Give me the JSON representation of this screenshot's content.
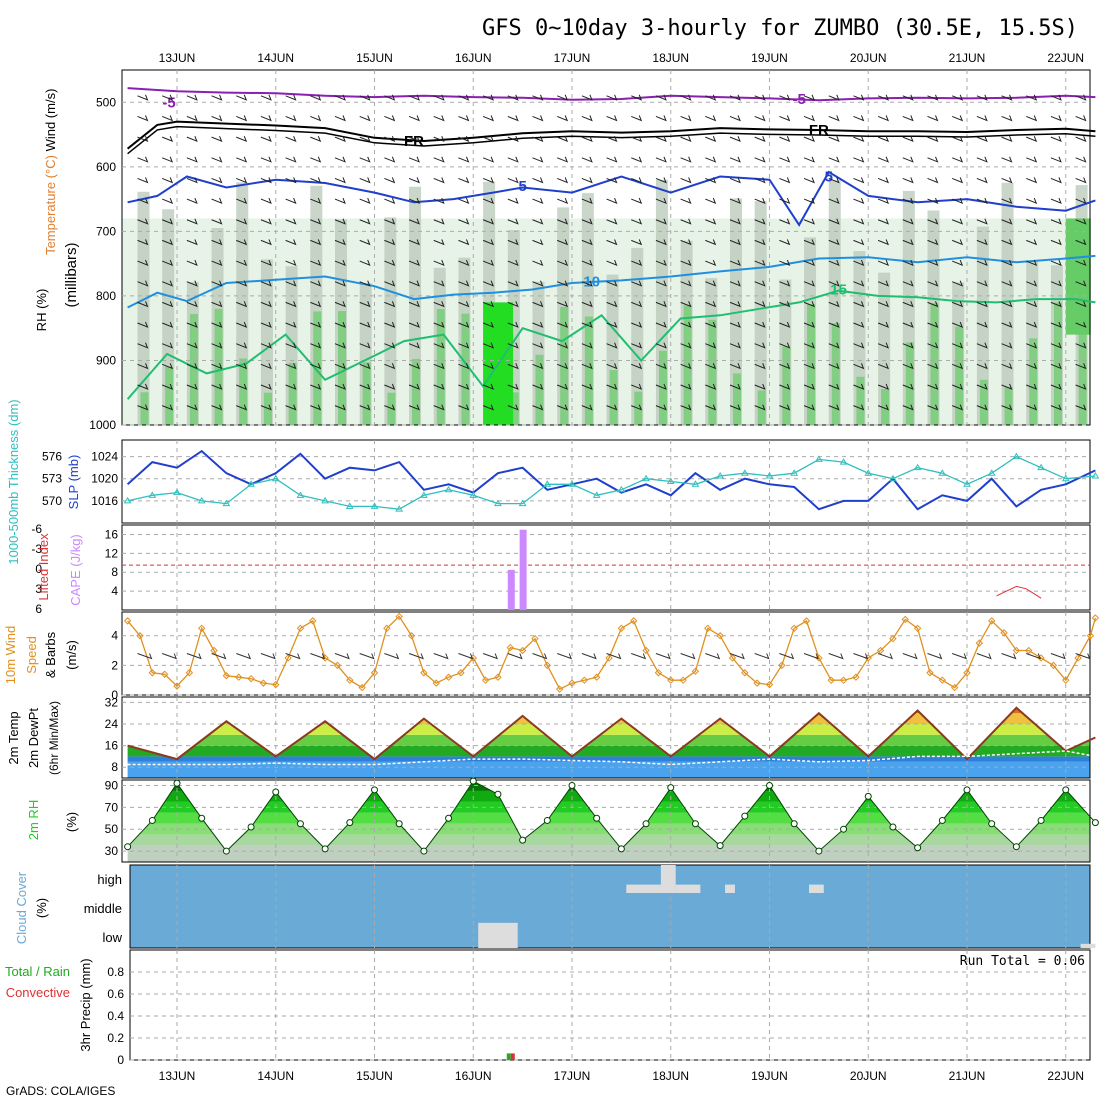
{
  "title": "GFS 0~10day 3-hourly for ZUMBO (30.5E, 15.5S)",
  "footer": "GrADS: COLA/IGES",
  "run_total_label": "Run Total = 0.06",
  "colors": {
    "temp_minus5": "#8a1fb0",
    "freezing": "#000000",
    "temp_5": "#1f3fcc",
    "temp_10": "#1f90e0",
    "temp_15": "#1fbf6f",
    "temp_20": "#e0901f",
    "rh_light": "#e8f3e8",
    "rh_mid": "#b8c8b8",
    "rh_green": "#66cc66",
    "rh_bright": "#22dd22",
    "slp": "#1f3fcc",
    "thickness": "#2fbfbf",
    "cape": "#cc88ff",
    "lifted_index": "#dd3333",
    "wind10m": "#e09020",
    "dewpoint_fill": "#2f8fe0",
    "rh2m": "#22cc22",
    "cloud": "#6aaad6",
    "precip_total": "#22aa22",
    "precip_conv": "#dd3333"
  },
  "chart_data": [
    {
      "type": "line",
      "panel": "upper-air",
      "labels": {
        "wind": "Wind (m/s)",
        "temperature": "Temperature (°C)",
        "rh": "RH (%)",
        "ylabel": "(millibars)"
      },
      "x_ticks_top": [
        "13JUN",
        "14JUN",
        "15JUN",
        "16JUN",
        "17JUN",
        "18JUN",
        "19JUN",
        "20JUN",
        "21JUN",
        "22JUN"
      ],
      "y_ticks": [
        500,
        600,
        700,
        800,
        900,
        1000
      ],
      "ylim": [
        450,
        1000
      ],
      "y_reversed": true,
      "contour_labels": [
        {
          "label": "-5",
          "day": 12.92,
          "p": 500
        },
        {
          "label": "-5",
          "day": 19.3,
          "p": 495
        },
        {
          "label": "FR",
          "day": 15.4,
          "p": 560
        },
        {
          "label": "FR",
          "day": 19.5,
          "p": 543
        },
        {
          "label": "5",
          "day": 16.5,
          "p": 630
        },
        {
          "label": "5",
          "day": 19.6,
          "p": 615
        },
        {
          "label": "10",
          "day": 17.2,
          "p": 778
        },
        {
          "label": "15",
          "day": 19.7,
          "p": 790
        }
      ],
      "series": [
        {
          "name": "-5",
          "color_key": "temp_minus5",
          "day": [
            12.5,
            13,
            13.5,
            14,
            14.5,
            15,
            15.5,
            16,
            16.5,
            17,
            17.5,
            18,
            18.5,
            19,
            19.5,
            20,
            20.5,
            21,
            21.5,
            22,
            22.3
          ],
          "p": [
            478,
            483,
            485,
            486,
            490,
            492,
            490,
            492,
            493,
            496,
            495,
            490,
            492,
            494,
            497,
            494,
            493,
            494,
            493,
            490,
            492
          ]
        },
        {
          "name": "FR",
          "color_key": "freezing",
          "day": [
            12.5,
            12.8,
            13,
            13.5,
            14,
            14.5,
            15,
            15.5,
            16,
            16.5,
            17,
            17.5,
            18,
            18.5,
            19,
            19.5,
            20,
            20.5,
            21,
            21.5,
            22,
            22.3
          ],
          "p": [
            572,
            535,
            530,
            533,
            536,
            540,
            555,
            560,
            555,
            548,
            545,
            547,
            545,
            540,
            542,
            543,
            545,
            545,
            546,
            543,
            541,
            545
          ]
        },
        {
          "name": "5",
          "color_key": "temp_5",
          "day": [
            12.5,
            12.8,
            13.1,
            13.5,
            14,
            14.5,
            15,
            15.4,
            15.8,
            16.2,
            16.5,
            17,
            17.5,
            18,
            18.5,
            19,
            19.3,
            19.6,
            20,
            20.5,
            21,
            21.5,
            22,
            22.3
          ],
          "p": [
            655,
            645,
            615,
            632,
            620,
            625,
            640,
            655,
            650,
            640,
            632,
            640,
            615,
            640,
            615,
            620,
            690,
            608,
            645,
            655,
            650,
            662,
            668,
            652
          ]
        },
        {
          "name": "10",
          "color_key": "temp_10",
          "day": [
            12.5,
            12.8,
            13.1,
            13.5,
            14,
            14.5,
            15,
            15.4,
            15.8,
            16.2,
            16.6,
            17,
            17.5,
            18,
            18.5,
            19,
            19.5,
            20,
            20.5,
            21,
            21.5,
            22,
            22.3
          ],
          "p": [
            818,
            795,
            808,
            780,
            775,
            770,
            785,
            805,
            798,
            795,
            790,
            780,
            776,
            770,
            762,
            755,
            742,
            740,
            748,
            740,
            748,
            742,
            738
          ]
        },
        {
          "name": "15",
          "color_key": "temp_15",
          "day": [
            12.5,
            12.9,
            13.3,
            13.7,
            14.1,
            14.5,
            14.9,
            15.3,
            15.7,
            16.1,
            16.5,
            16.9,
            17.3,
            17.7,
            18.1,
            18.5,
            18.9,
            19.3,
            19.7,
            20.1,
            20.5,
            20.9,
            21.3,
            21.7,
            22.1,
            22.3
          ],
          "p": [
            960,
            890,
            920,
            905,
            860,
            930,
            900,
            870,
            860,
            940,
            850,
            870,
            830,
            900,
            835,
            830,
            820,
            810,
            792,
            800,
            802,
            808,
            810,
            805,
            805,
            810
          ]
        }
      ]
    },
    {
      "type": "line",
      "panel": "slp-thickness",
      "labels": {
        "left": "1000-500mb Thickness (dm)",
        "right": "SLP (mb)"
      },
      "thickness_ticks": [
        570,
        573,
        576
      ],
      "slp_ticks": [
        1016,
        1020,
        1024
      ],
      "slp_lim": [
        1012,
        1027
      ],
      "series": [
        {
          "name": "SLP",
          "color_key": "slp",
          "day": [
            12.5,
            12.75,
            13,
            13.25,
            13.5,
            13.75,
            14,
            14.25,
            14.5,
            14.75,
            15,
            15.25,
            15.5,
            15.75,
            16,
            16.25,
            16.5,
            16.75,
            17,
            17.25,
            17.5,
            17.75,
            18,
            18.25,
            18.5,
            18.75,
            19,
            19.25,
            19.5,
            19.75,
            20,
            20.25,
            20.5,
            20.75,
            21,
            21.25,
            21.5,
            21.75,
            22,
            22.3
          ],
          "slp": [
            1019,
            1023,
            1022,
            1025,
            1021,
            1019,
            1021,
            1024.5,
            1020,
            1022,
            1021.5,
            1023,
            1018,
            1019,
            1017.5,
            1021,
            1022,
            1018,
            1019,
            1020,
            1017.5,
            1019,
            1017,
            1021,
            1018,
            1020,
            1019,
            1018.5,
            1014.5,
            1016,
            1016,
            1020,
            1014.5,
            1017,
            1016,
            1020,
            1015,
            1018,
            1019,
            1021.5
          ]
        },
        {
          "name": "Thickness",
          "color_key": "thickness",
          "day": [
            12.5,
            12.75,
            13,
            13.25,
            13.5,
            13.75,
            14,
            14.25,
            14.5,
            14.75,
            15,
            15.25,
            15.5,
            15.75,
            16,
            16.25,
            16.5,
            16.75,
            17,
            17.25,
            17.5,
            17.75,
            18,
            18.25,
            18.5,
            18.75,
            19,
            19.25,
            19.5,
            19.75,
            20,
            20.25,
            20.5,
            20.75,
            21,
            21.25,
            21.5,
            21.75,
            22,
            22.3
          ],
          "slp": [
            1016,
            1017,
            1017.5,
            1016,
            1015.5,
            1019,
            1020,
            1017,
            1016,
            1015,
            1015,
            1014.5,
            1017,
            1018,
            1017,
            1015.5,
            1015.5,
            1019,
            1019,
            1017,
            1018,
            1020,
            1019.5,
            1019,
            1020.5,
            1021,
            1020.5,
            1021,
            1023.5,
            1023,
            1021,
            1020,
            1022,
            1021,
            1019,
            1021,
            1024,
            1022,
            1020,
            1020.5
          ]
        }
      ]
    },
    {
      "type": "bar",
      "panel": "cape-lifted-index",
      "labels": {
        "left": "Lifted Index",
        "right": "CAPE (J/kg)"
      },
      "cape_ticks": [
        4,
        8,
        12,
        16
      ],
      "li_ticks": [
        "-6",
        "-3",
        "0",
        "3",
        "6"
      ],
      "cape_lim": [
        0,
        18
      ],
      "cape_bars": [
        {
          "day": 16.38,
          "value": 8.5
        },
        {
          "day": 16.5,
          "value": 17
        }
      ],
      "li_line": {
        "day": [
          21.3,
          21.5,
          21.6,
          21.75
        ],
        "cape_equiv": [
          3,
          5,
          4.5,
          2.5
        ]
      },
      "li_zero_cape_equiv": 9.5
    },
    {
      "type": "line",
      "panel": "wind10m",
      "labels": {
        "left": "10m Wind",
        "mid": "Speed",
        "right": "& Barbs",
        "units": "(m/s)"
      },
      "y_ticks": [
        0,
        2,
        4
      ],
      "ylim": [
        0,
        5.6
      ],
      "series": [
        {
          "name": "10m wind speed",
          "color_key": "wind10m",
          "day": [
            12.5,
            12.625,
            12.75,
            12.875,
            13,
            13.125,
            13.25,
            13.375,
            13.5,
            13.625,
            13.75,
            13.875,
            14,
            14.125,
            14.25,
            14.375,
            14.5,
            14.625,
            14.75,
            14.875,
            15,
            15.125,
            15.25,
            15.375,
            15.5,
            15.625,
            15.75,
            15.875,
            16,
            16.125,
            16.25,
            16.375,
            16.5,
            16.625,
            16.75,
            16.875,
            17,
            17.125,
            17.25,
            17.375,
            17.5,
            17.625,
            17.75,
            17.875,
            18,
            18.125,
            18.25,
            18.375,
            18.5,
            18.625,
            18.75,
            18.875,
            19,
            19.125,
            19.25,
            19.375,
            19.5,
            19.625,
            19.75,
            19.875,
            20,
            20.125,
            20.25,
            20.375,
            20.5,
            20.625,
            20.75,
            20.875,
            21,
            21.125,
            21.25,
            21.375,
            21.5,
            21.625,
            21.75,
            21.875,
            22,
            22.125,
            22.25,
            22.3
          ],
          "speed": [
            5,
            4,
            1.5,
            1.4,
            0.6,
            1.5,
            4.5,
            3,
            1.3,
            1.2,
            1.1,
            0.8,
            0.7,
            2.5,
            4.5,
            5,
            2.5,
            2,
            1,
            0.5,
            1.5,
            4.5,
            5.3,
            4,
            1.5,
            0.8,
            1.2,
            1.5,
            2.5,
            1,
            1.2,
            3.2,
            3,
            3.8,
            2,
            0.4,
            0.8,
            1,
            1.2,
            2.5,
            4.5,
            5,
            3,
            1.5,
            1,
            1,
            1.6,
            4.5,
            4,
            2.5,
            1.5,
            0.8,
            0.7,
            2,
            4.5,
            5,
            2.5,
            1,
            1,
            1.2,
            2.5,
            3,
            3.8,
            5.1,
            4.5,
            1.5,
            1,
            0.5,
            1.5,
            3.5,
            5,
            4.2,
            3,
            3,
            2.5,
            2,
            1,
            2.5,
            4,
            5.2
          ]
        }
      ]
    },
    {
      "type": "area",
      "panel": "temp2m",
      "labels": {
        "line1": "2m Temp",
        "line2": "2m DewPt",
        "line3": "(6hr Min/Max)"
      },
      "y_ticks": [
        8,
        16,
        24,
        32
      ],
      "ylim": [
        4,
        34
      ],
      "series": [
        {
          "name": "2m Temp",
          "day": [
            12.5,
            13,
            13.5,
            14,
            14.5,
            15,
            15.5,
            16,
            16.5,
            17,
            17.5,
            18,
            18.5,
            19,
            19.5,
            20,
            20.5,
            21,
            21.5,
            22,
            22.3
          ],
          "temp": [
            16,
            11,
            25,
            12,
            25,
            11,
            26,
            12,
            27,
            12,
            26,
            12,
            26,
            12,
            28,
            12,
            29,
            11,
            30,
            14,
            19
          ]
        },
        {
          "name": "2m DewPt",
          "day": [
            12.5,
            13,
            13.5,
            14,
            14.5,
            15,
            15.5,
            16,
            16.5,
            17,
            17.5,
            18,
            18.5,
            19,
            19.5,
            20,
            20.5,
            21,
            21.5,
            22,
            22.3
          ],
          "temp": [
            9,
            9,
            9,
            9.5,
            9,
            9,
            10,
            11,
            11,
            10.5,
            10,
            9,
            10,
            11,
            10,
            10.5,
            12,
            12,
            13,
            14,
            12
          ]
        }
      ]
    },
    {
      "type": "area",
      "panel": "rh2m",
      "labels": {
        "left": "2m RH",
        "units": "(%)"
      },
      "y_ticks": [
        30,
        50,
        70,
        90
      ],
      "ylim": [
        20,
        95
      ],
      "series": [
        {
          "name": "2m RH",
          "color_key": "rh2m",
          "day": [
            12.5,
            12.75,
            13,
            13.25,
            13.5,
            13.75,
            14,
            14.25,
            14.5,
            14.75,
            15,
            15.25,
            15.5,
            15.75,
            16,
            16.25,
            16.5,
            16.75,
            17,
            17.25,
            17.5,
            17.75,
            18,
            18.25,
            18.5,
            18.75,
            19,
            19.25,
            19.5,
            19.75,
            20,
            20.25,
            20.5,
            20.75,
            21,
            21.25,
            21.5,
            21.75,
            22,
            22.3
          ],
          "rh": [
            34,
            58,
            92,
            60,
            30,
            52,
            84,
            55,
            32,
            56,
            86,
            55,
            30,
            60,
            94,
            82,
            40,
            58,
            90,
            60,
            32,
            55,
            88,
            55,
            35,
            62,
            90,
            55,
            30,
            50,
            80,
            52,
            33,
            58,
            86,
            55,
            34,
            58,
            86,
            56
          ]
        }
      ]
    },
    {
      "type": "bar",
      "panel": "cloud-cover",
      "labels": {
        "left": "Cloud Cover",
        "units": "(%)"
      },
      "y_ticks": [
        "high",
        "middle",
        "low"
      ],
      "clear_patches": [
        {
          "level": "low",
          "day_start": 16.05,
          "day_end": 16.45,
          "height": 0.9
        },
        {
          "level": "high",
          "day_start": 17.55,
          "day_end": 18.05,
          "height": 0.3
        },
        {
          "level": "high",
          "day_start": 17.9,
          "day_end": 18.05,
          "height": 1.0
        },
        {
          "level": "high",
          "day_start": 18.05,
          "day_end": 18.3,
          "height": 0.3
        },
        {
          "level": "high",
          "day_start": 18.55,
          "day_end": 18.65,
          "height": 0.3
        },
        {
          "level": "high",
          "day_start": 19.4,
          "day_end": 19.55,
          "height": 0.3
        },
        {
          "level": "low",
          "day_start": 22.15,
          "day_end": 22.3,
          "height": 0.15
        }
      ]
    },
    {
      "type": "bar",
      "panel": "precip",
      "labels": {
        "left1": "Total / Rain",
        "left2": "Convective",
        "right": "3hr Precip (mm)"
      },
      "y_ticks": [
        0,
        0.2,
        0.4,
        0.6,
        0.8
      ],
      "ylim": [
        0,
        1
      ],
      "bars": [
        {
          "day": 16.38,
          "total": 0.06,
          "convective": 0.06
        }
      ],
      "x_ticks_bottom": [
        "13JUN",
        "14JUN",
        "15JUN",
        "16JUN",
        "17JUN",
        "18JUN",
        "19JUN",
        "20JUN",
        "21JUN",
        "22JUN"
      ]
    }
  ]
}
